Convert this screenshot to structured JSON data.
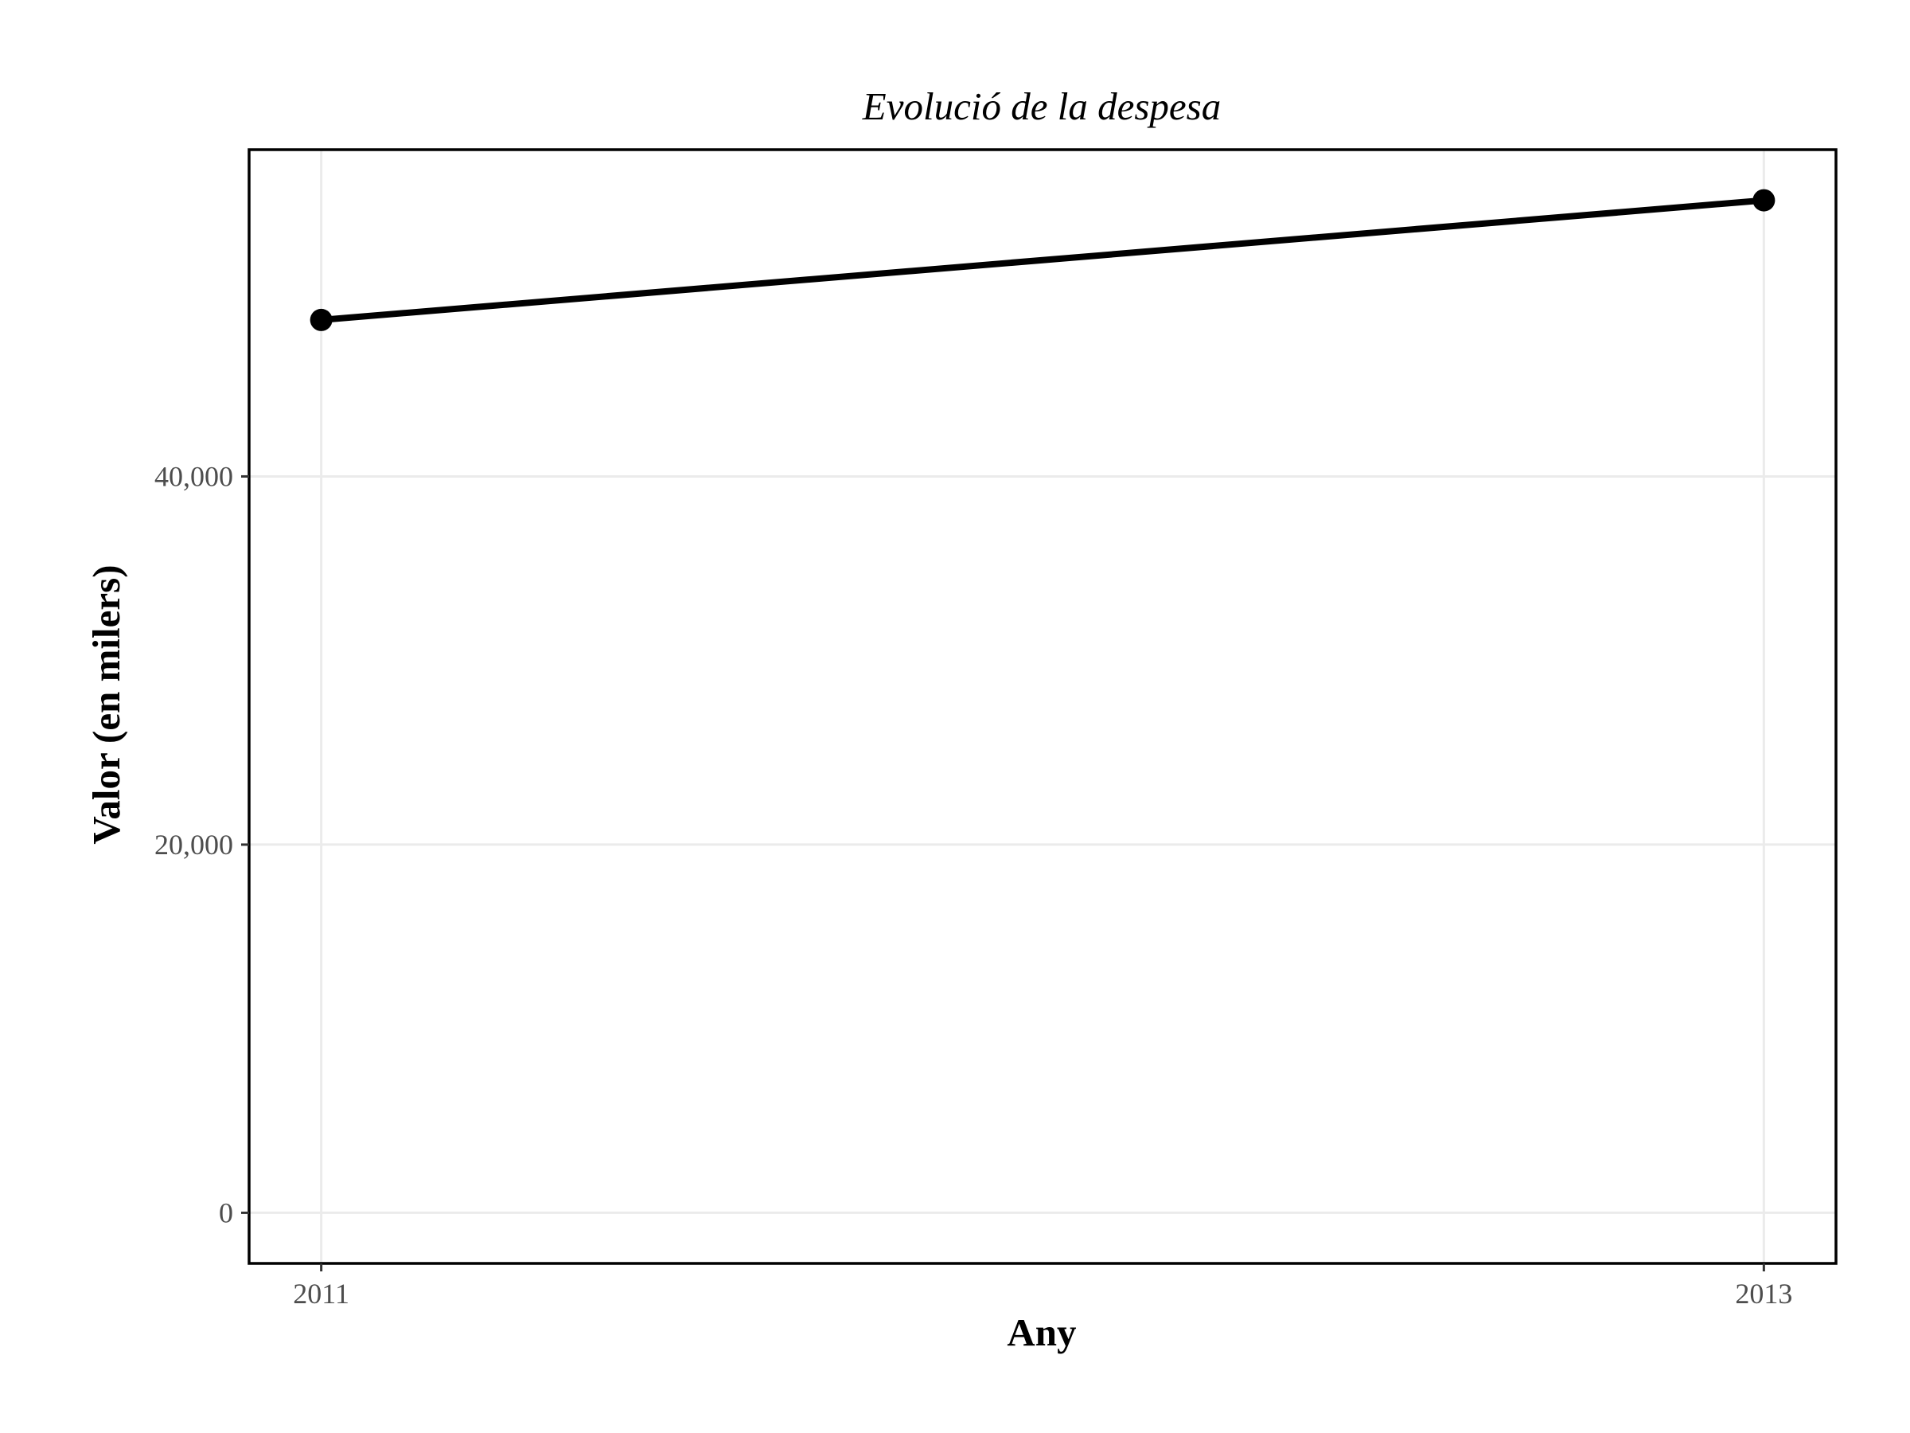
{
  "chart_data": {
    "type": "line",
    "title": "Evolució de la despesa",
    "xlabel": "Any",
    "ylabel": "Valor (en milers)",
    "x": [
      2011,
      2013
    ],
    "series": [
      {
        "values": [
          48500,
          55000
        ]
      }
    ],
    "xlim": [
      2010.9,
      2013.1
    ],
    "ylim": [
      -2750,
      57750
    ],
    "x_ticks": [
      2011,
      2013
    ],
    "x_tick_labels": [
      "2011",
      "2013"
    ],
    "y_ticks": [
      0,
      20000,
      40000
    ],
    "y_tick_labels": [
      "0",
      "20,000",
      "40,000"
    ],
    "grid": true,
    "colors": {
      "line": "#000000",
      "grid": "#ebebeb",
      "frame": "#000000"
    }
  }
}
